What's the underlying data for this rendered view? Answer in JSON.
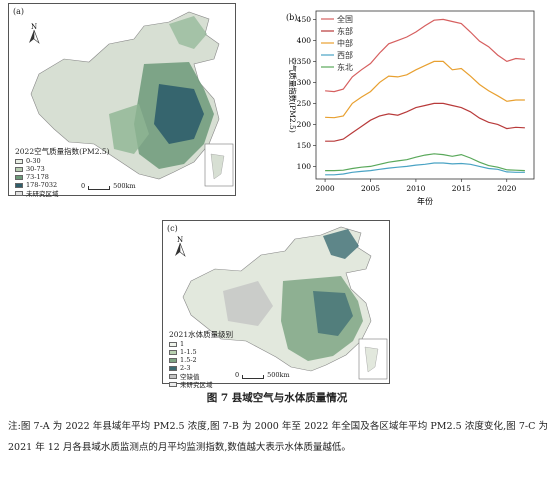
{
  "panel_a": {
    "label": "(a)",
    "north": "N",
    "legend_title": "2022空气质量指数(PM2.5)",
    "legend": [
      {
        "label": "0-30",
        "color": "#e9efe5"
      },
      {
        "label": "30-73",
        "color": "#b9cfb3"
      },
      {
        "label": "73-178",
        "color": "#6d9a79"
      },
      {
        "label": "178-7032",
        "color": "#2f5e6b"
      },
      {
        "label": "未研究区域",
        "color": "#e2e2e2"
      }
    ],
    "scale_zero": "0",
    "scale_label": "500km"
  },
  "panel_c": {
    "label": "(c)",
    "north": "N",
    "legend_title": "2021水体质量级别",
    "legend": [
      {
        "label": "1",
        "color": "#eef3ea"
      },
      {
        "label": "1-1.5",
        "color": "#b9d1b1"
      },
      {
        "label": "1.5-2",
        "color": "#7fa685"
      },
      {
        "label": "2-3",
        "color": "#3d6d74"
      },
      {
        "label": "空缺值",
        "color": "#c4c4c4"
      },
      {
        "label": "未研究区域",
        "color": "#ececec"
      }
    ],
    "scale_zero": "0",
    "scale_label": "500km"
  },
  "chart_data": {
    "type": "line",
    "panel_label": "(b)",
    "xlabel": "年份",
    "ylabel": "空气质量指数(PM2.5)",
    "xlim": [
      1999,
      2023
    ],
    "ylim": [
      70,
      470
    ],
    "xticks": [
      2000,
      2005,
      2010,
      2015,
      2020
    ],
    "yticks": [
      100,
      150,
      200,
      250,
      300,
      350,
      400,
      450
    ],
    "legend_position": "top-left",
    "x": [
      2000,
      2001,
      2002,
      2003,
      2004,
      2005,
      2006,
      2007,
      2008,
      2009,
      2010,
      2011,
      2012,
      2013,
      2014,
      2015,
      2016,
      2017,
      2018,
      2019,
      2020,
      2021,
      2022
    ],
    "series": [
      {
        "name": "全国",
        "color": "#d65f5f",
        "values": [
          280,
          278,
          284,
          313,
          330,
          345,
          370,
          392,
          400,
          408,
          420,
          435,
          448,
          450,
          445,
          440,
          420,
          398,
          385,
          365,
          350,
          357,
          355
        ]
      },
      {
        "name": "东部",
        "color": "#b83a3a",
        "values": [
          160,
          160,
          165,
          180,
          195,
          210,
          220,
          225,
          222,
          230,
          240,
          245,
          250,
          250,
          245,
          240,
          230,
          215,
          205,
          200,
          190,
          193,
          192
        ]
      },
      {
        "name": "中部",
        "color": "#e8a030",
        "values": [
          217,
          216,
          220,
          250,
          265,
          278,
          300,
          315,
          313,
          318,
          330,
          340,
          350,
          350,
          330,
          333,
          315,
          295,
          280,
          268,
          255,
          258,
          258
        ]
      },
      {
        "name": "西部",
        "color": "#4aa3c4",
        "values": [
          80,
          80,
          82,
          86,
          88,
          90,
          93,
          96,
          98,
          100,
          103,
          105,
          108,
          108,
          106,
          107,
          105,
          100,
          95,
          93,
          87,
          86,
          86
        ]
      },
      {
        "name": "东北",
        "color": "#59a85a",
        "values": [
          90,
          90,
          91,
          95,
          98,
          100,
          105,
          110,
          113,
          116,
          122,
          127,
          130,
          128,
          124,
          128,
          120,
          110,
          102,
          98,
          92,
          91,
          90
        ]
      }
    ]
  },
  "figure": {
    "title": "图 7   县域空气与水体质量情况",
    "note": "注:图 7-A 为 2022 年县域年平均 PM2.5 浓度,图 7-B 为 2000 年至 2022 年全国及各区域年平均 PM2.5 浓度变化,图 7-C 为 2021 年 12 月各县域水质监测点的月平均监测指数,数值越大表示水体质量越低。"
  }
}
